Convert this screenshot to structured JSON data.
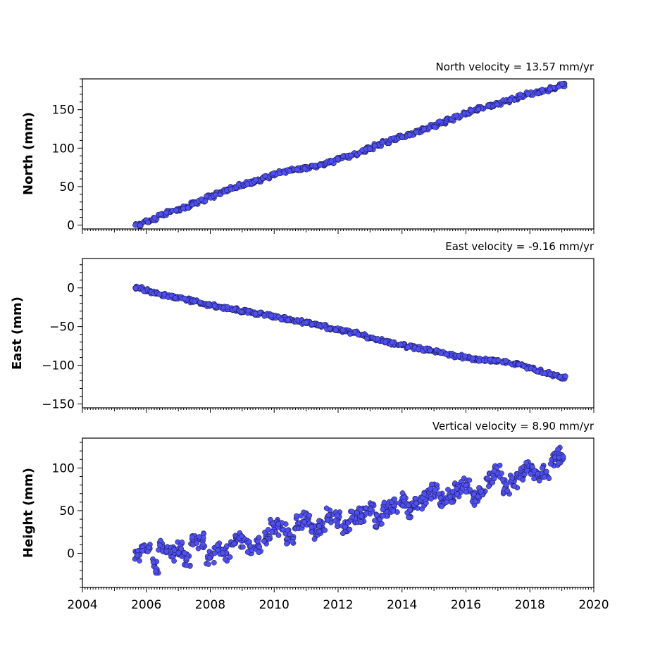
{
  "chart_data": [
    {
      "type": "scatter",
      "title": "North velocity = 13.57 mm/yr",
      "ylabel": "North (mm)",
      "xlabel": "",
      "xlim": [
        2004,
        2020
      ],
      "ylim": [
        -5,
        190
      ],
      "yticks": [
        0,
        50,
        100,
        150
      ],
      "xticks": [
        2004,
        2006,
        2008,
        2010,
        2012,
        2014,
        2016,
        2018,
        2020
      ],
      "show_x_tick_labels": false,
      "grid": false,
      "series": [
        {
          "marker_color": "#4f4ff5",
          "x": [
            2005.75,
            2006.0,
            2006.25,
            2006.5,
            2006.75,
            2007.0,
            2007.25,
            2007.5,
            2007.75,
            2008.0,
            2008.25,
            2008.5,
            2008.75,
            2009.0,
            2009.25,
            2009.5,
            2009.75,
            2010.0,
            2010.25,
            2010.5,
            2010.75,
            2011.0,
            2011.25,
            2011.5,
            2011.75,
            2012.0,
            2012.25,
            2012.5,
            2012.75,
            2013.0,
            2013.25,
            2013.5,
            2013.75,
            2014.0,
            2014.25,
            2014.5,
            2014.75,
            2015.0,
            2015.25,
            2015.5,
            2015.75,
            2016.0,
            2016.25,
            2016.5,
            2016.75,
            2017.0,
            2017.25,
            2017.5,
            2017.75,
            2018.0,
            2018.25,
            2018.5,
            2018.75,
            2019.0
          ],
          "y": [
            0,
            5,
            8,
            13,
            17,
            20,
            23,
            28,
            32,
            37,
            41,
            45,
            48,
            52,
            55,
            58,
            62,
            66,
            69,
            72,
            73,
            74,
            76,
            79,
            82,
            86,
            89,
            92,
            96,
            100,
            104,
            108,
            112,
            115,
            118,
            122,
            125,
            129,
            133,
            137,
            141,
            145,
            149,
            152,
            155,
            158,
            161,
            164,
            168,
            171,
            173,
            175,
            178,
            182
          ]
        }
      ]
    },
    {
      "type": "scatter",
      "title": "East velocity = -9.16 mm/yr",
      "ylabel": "East (mm)",
      "xlabel": "",
      "xlim": [
        2004,
        2020
      ],
      "ylim": [
        -155,
        38
      ],
      "yticks": [
        0,
        -50,
        -100,
        -150
      ],
      "xticks": [
        2004,
        2006,
        2008,
        2010,
        2012,
        2014,
        2016,
        2018,
        2020
      ],
      "show_x_tick_labels": false,
      "grid": false,
      "series": [
        {
          "marker_color": "#4f4ff5",
          "x": [
            2005.75,
            2006.0,
            2006.25,
            2006.5,
            2006.75,
            2007.0,
            2007.25,
            2007.5,
            2007.75,
            2008.0,
            2008.25,
            2008.5,
            2008.75,
            2009.0,
            2009.25,
            2009.5,
            2009.75,
            2010.0,
            2010.25,
            2010.5,
            2010.75,
            2011.0,
            2011.25,
            2011.5,
            2011.75,
            2012.0,
            2012.25,
            2012.5,
            2012.75,
            2013.0,
            2013.25,
            2013.5,
            2013.75,
            2014.0,
            2014.25,
            2014.5,
            2014.75,
            2015.0,
            2015.25,
            2015.5,
            2015.75,
            2016.0,
            2016.25,
            2016.5,
            2016.75,
            2017.0,
            2017.25,
            2017.5,
            2017.75,
            2018.0,
            2018.25,
            2018.5,
            2018.75,
            2019.0
          ],
          "y": [
            0,
            -3,
            -6,
            -9,
            -11,
            -13,
            -15,
            -17,
            -20,
            -22,
            -24,
            -26,
            -28,
            -30,
            -31,
            -33,
            -35,
            -37,
            -39,
            -41,
            -43,
            -45,
            -47,
            -49,
            -52,
            -54,
            -56,
            -58,
            -61,
            -64,
            -67,
            -70,
            -72,
            -74,
            -76,
            -78,
            -80,
            -82,
            -84,
            -86,
            -88,
            -90,
            -92,
            -93,
            -94,
            -95,
            -96,
            -98,
            -100,
            -103,
            -107,
            -110,
            -113,
            -116
          ]
        }
      ]
    },
    {
      "type": "scatter",
      "title": "Vertical velocity = 8.90 mm/yr",
      "ylabel": "Height (mm)",
      "xlabel": "",
      "xlim": [
        2004,
        2020
      ],
      "ylim": [
        -40,
        135
      ],
      "yticks": [
        0,
        50,
        100
      ],
      "xticks": [
        2004,
        2006,
        2008,
        2010,
        2012,
        2014,
        2016,
        2018,
        2020
      ],
      "show_x_tick_labels": true,
      "grid": false,
      "series": [
        {
          "marker_color": "#4f4ff5",
          "x": [
            2005.75,
            2006.0,
            2006.25,
            2006.5,
            2006.75,
            2007.0,
            2007.25,
            2007.5,
            2007.75,
            2008.0,
            2008.25,
            2008.5,
            2008.75,
            2009.0,
            2009.25,
            2009.5,
            2009.75,
            2010.0,
            2010.25,
            2010.5,
            2010.75,
            2011.0,
            2011.25,
            2011.5,
            2011.75,
            2012.0,
            2012.25,
            2012.5,
            2012.75,
            2013.0,
            2013.25,
            2013.5,
            2013.75,
            2014.0,
            2014.25,
            2014.5,
            2014.75,
            2015.0,
            2015.25,
            2015.5,
            2015.75,
            2016.0,
            2016.25,
            2016.5,
            2016.75,
            2017.0,
            2017.25,
            2017.5,
            2017.75,
            2018.0,
            2018.25,
            2018.5,
            2018.75,
            2019.0
          ],
          "y": [
            0,
            3,
            -15,
            8,
            0,
            5,
            -8,
            12,
            15,
            -5,
            8,
            0,
            12,
            15,
            8,
            10,
            20,
            32,
            28,
            20,
            35,
            40,
            25,
            30,
            45,
            40,
            30,
            42,
            45,
            50,
            38,
            52,
            55,
            62,
            50,
            60,
            65,
            72,
            62,
            68,
            75,
            80,
            65,
            70,
            85,
            95,
            78,
            85,
            95,
            100,
            90,
            95,
            110,
            115
          ]
        }
      ]
    }
  ]
}
